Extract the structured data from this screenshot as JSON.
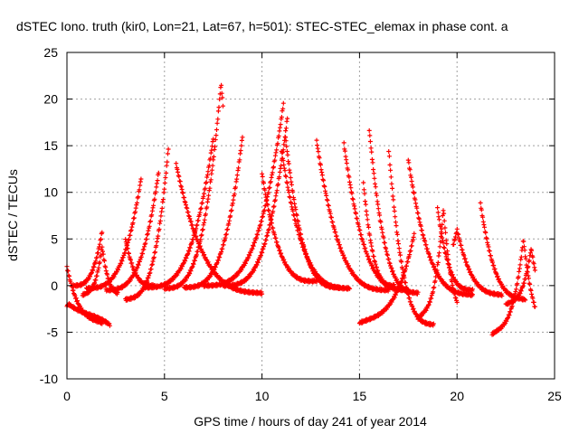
{
  "chart_data": {
    "type": "scatter",
    "title": "dSTEC Iono. truth (kir0, Lon=21, Lat=67, h=501): STEC-STEC_elemax in phase cont. a",
    "xlabel": "GPS time / hours of day 241 of year 2014",
    "ylabel": "dSTEC  / TECUs",
    "xlim": [
      0,
      25
    ],
    "ylim": [
      -10,
      25
    ],
    "xticks": [
      0,
      5,
      10,
      15,
      20,
      25
    ],
    "yticks": [
      -10,
      -5,
      0,
      5,
      10,
      15,
      20,
      25
    ],
    "x_tick_labels": [
      "0",
      "5",
      "10",
      "15",
      "20",
      "25"
    ],
    "y_tick_labels": [
      "-10",
      "-5",
      "0",
      "5",
      "10",
      "15",
      "20",
      "25"
    ],
    "grid": true,
    "marker": "+",
    "color": "#ff0000",
    "arcs": [
      {
        "t0": 0.0,
        "t1": 1.8,
        "peak_t": 0.0,
        "peak": 2.0,
        "end": -1.5,
        "base": -4.0,
        "kind": "desc"
      },
      {
        "t0": 0.0,
        "t1": 2.2,
        "peak_t": 0.1,
        "peak": -2.0,
        "end": 1.5,
        "base": -4.2,
        "kind": "desc"
      },
      {
        "t0": 0.3,
        "t1": 1.8,
        "peak_t": 1.8,
        "peak": 5.8,
        "end": 0.0,
        "base": 0.0,
        "kind": "rise"
      },
      {
        "t0": 0.8,
        "t1": 2.6,
        "peak_t": 1.8,
        "peak": 4.2,
        "end": 0.5,
        "base": -1.0,
        "kind": "both"
      },
      {
        "t0": 1.0,
        "t1": 3.8,
        "peak_t": 3.8,
        "peak": 11.5,
        "end": 0.0,
        "base": -0.3,
        "kind": "rise"
      },
      {
        "t0": 2.0,
        "t1": 4.7,
        "peak_t": 4.7,
        "peak": 12.2,
        "end": 0.0,
        "base": -0.5,
        "kind": "rise"
      },
      {
        "t0": 3.0,
        "t1": 5.2,
        "peak_t": 5.2,
        "peak": 14.7,
        "end": 0.0,
        "base": -1.5,
        "kind": "rise"
      },
      {
        "t0": 3.0,
        "t1": 4.5,
        "peak_t": 3.0,
        "peak": 5.0,
        "end": 0.0,
        "base": 0.0,
        "kind": "desc"
      },
      {
        "t0": 4.0,
        "t1": 7.5,
        "peak_t": 7.5,
        "peak": 15.8,
        "end": 0.0,
        "base": -0.2,
        "kind": "rise"
      },
      {
        "t0": 5.0,
        "t1": 8.0,
        "peak_t": 7.9,
        "peak": 21.7,
        "end": 0.0,
        "base": -0.3,
        "kind": "rise"
      },
      {
        "t0": 6.0,
        "t1": 9.0,
        "peak_t": 9.0,
        "peak": 16.0,
        "end": 0.0,
        "base": -0.2,
        "kind": "rise"
      },
      {
        "t0": 5.6,
        "t1": 10.0,
        "peak_t": 5.6,
        "peak": 13.0,
        "end": 0.0,
        "base": -0.8,
        "kind": "desc"
      },
      {
        "t0": 7.0,
        "t1": 11.1,
        "peak_t": 11.1,
        "peak": 19.5,
        "end": 0.0,
        "base": 0.0,
        "kind": "rise"
      },
      {
        "t0": 8.0,
        "t1": 11.3,
        "peak_t": 11.3,
        "peak": 18.0,
        "end": 0.0,
        "base": 0.0,
        "kind": "rise"
      },
      {
        "t0": 11.2,
        "t1": 14.0,
        "peak_t": 11.2,
        "peak": 16.0,
        "end": 0.0,
        "base": -0.2,
        "kind": "desc"
      },
      {
        "t0": 11.0,
        "t1": 14.5,
        "peak_t": 11.0,
        "peak": 14.5,
        "end": 0.0,
        "base": -0.3,
        "kind": "desc"
      },
      {
        "t0": 10.0,
        "t1": 12.8,
        "peak_t": 10.0,
        "peak": 12.0,
        "end": 0.0,
        "base": 0.5,
        "kind": "desc"
      },
      {
        "t0": 12.8,
        "t1": 16.5,
        "peak_t": 12.8,
        "peak": 15.5,
        "end": 0.0,
        "base": -0.5,
        "kind": "desc"
      },
      {
        "t0": 14.2,
        "t1": 17.5,
        "peak_t": 14.2,
        "peak": 15.2,
        "end": 0.0,
        "base": -0.5,
        "kind": "desc"
      },
      {
        "t0": 15.2,
        "t1": 16.8,
        "peak_t": 15.2,
        "peak": 11.0,
        "end": 0.0,
        "base": 0.0,
        "kind": "desc"
      },
      {
        "t0": 15.5,
        "t1": 18.0,
        "peak_t": 15.5,
        "peak": 16.7,
        "end": 0.0,
        "base": -0.8,
        "kind": "desc"
      },
      {
        "t0": 16.5,
        "t1": 18.8,
        "peak_t": 16.5,
        "peak": 14.5,
        "end": -3.0,
        "base": -4.2,
        "kind": "desc"
      },
      {
        "t0": 17.5,
        "t1": 20.8,
        "peak_t": 17.5,
        "peak": 13.5,
        "end": 0.0,
        "base": -1.0,
        "kind": "desc"
      },
      {
        "t0": 19.0,
        "t1": 20.8,
        "peak_t": 19.0,
        "peak": 8.3,
        "end": 0.0,
        "base": -0.5,
        "kind": "desc"
      },
      {
        "t0": 19.8,
        "t1": 22.3,
        "peak_t": 20.0,
        "peak": 6.0,
        "end": 0.0,
        "base": -1.0,
        "kind": "desc"
      },
      {
        "t0": 21.2,
        "t1": 23.5,
        "peak_t": 21.2,
        "peak": 8.8,
        "end": 0.0,
        "base": -1.5,
        "kind": "desc"
      },
      {
        "t0": 15.0,
        "t1": 17.8,
        "peak_t": 17.8,
        "peak": 5.5,
        "end": 0.0,
        "base": -4.0,
        "kind": "rise"
      },
      {
        "t0": 18.0,
        "t1": 20.0,
        "peak_t": 19.3,
        "peak": 8.3,
        "end": 1.5,
        "base": -3.5,
        "kind": "both"
      },
      {
        "t0": 21.8,
        "t1": 24.0,
        "peak_t": 23.4,
        "peak": 5.0,
        "end": -1.0,
        "base": -5.2,
        "kind": "both"
      },
      {
        "t0": 22.5,
        "t1": 24.0,
        "peak_t": 23.8,
        "peak": 4.0,
        "end": 0.0,
        "base": -2.0,
        "kind": "rise"
      }
    ]
  }
}
